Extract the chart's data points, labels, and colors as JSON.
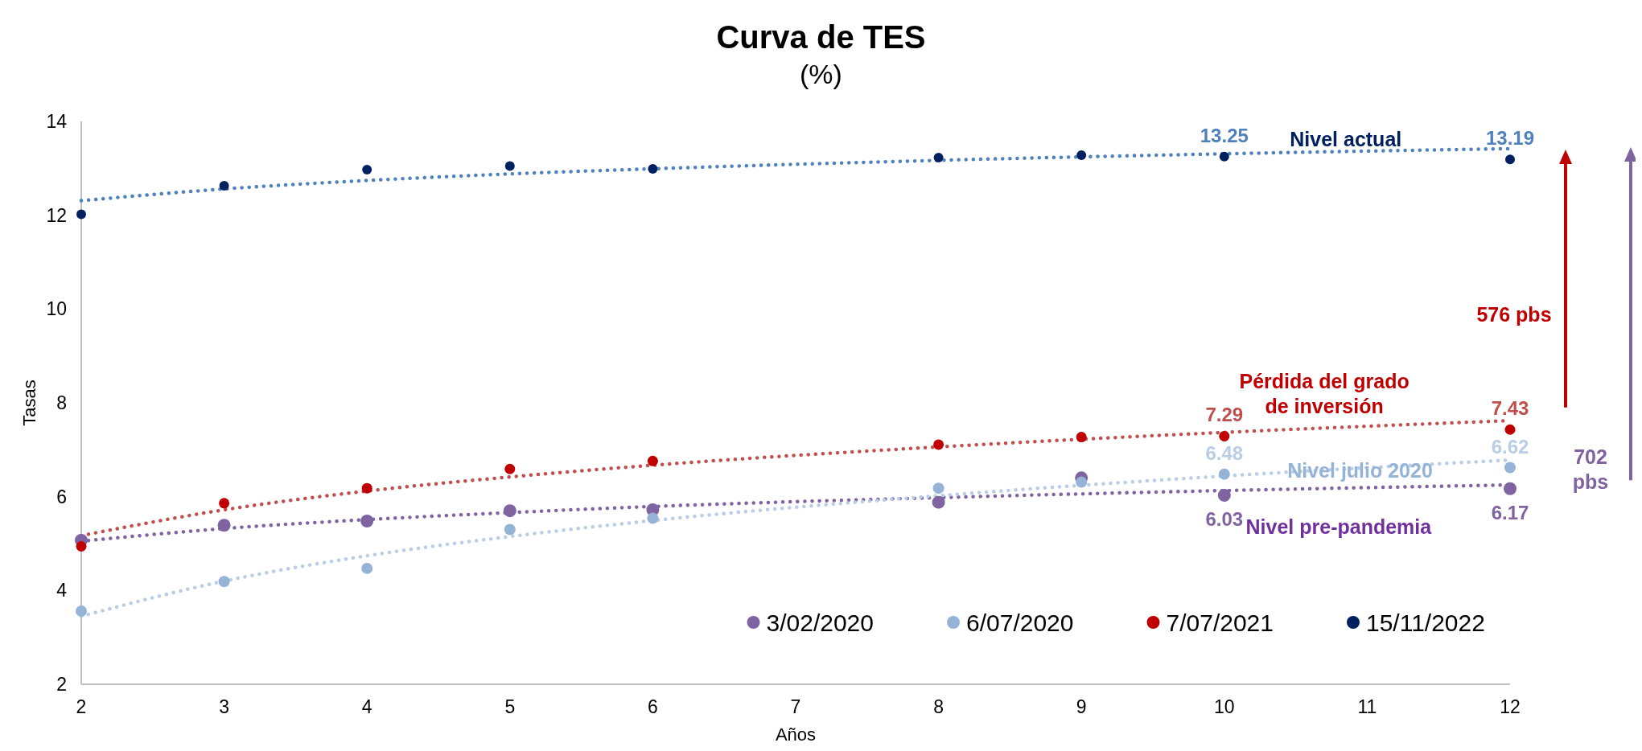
{
  "chart_data": {
    "type": "scatter",
    "title": "Curva de TES",
    "subtitle": "(%)",
    "xlabel": "Años",
    "ylabel": "Tasas",
    "x": [
      2,
      3,
      4,
      5,
      6,
      8,
      9,
      10,
      12
    ],
    "xlim": [
      2,
      12
    ],
    "xticks": [
      2,
      3,
      4,
      5,
      6,
      7,
      8,
      9,
      10,
      11,
      12
    ],
    "ylim": [
      2,
      14
    ],
    "yticks": [
      2,
      4,
      6,
      8,
      10,
      12,
      14
    ],
    "grid": false,
    "legend": "bottom right",
    "marker": "circle",
    "series": [
      {
        "name": "3/02/2020",
        "color": "#8064a2",
        "values": [
          5.07,
          5.39,
          5.48,
          5.7,
          5.72,
          5.88,
          6.4,
          6.03,
          6.17
        ],
        "value_labels": [
          null,
          null,
          null,
          null,
          null,
          null,
          null,
          "6.03",
          "6.17"
        ]
      },
      {
        "name": "6/07/2020",
        "color": "#95b3d7",
        "values": [
          3.56,
          4.19,
          4.47,
          5.3,
          5.54,
          6.18,
          6.31,
          6.48,
          6.62
        ],
        "value_labels": [
          null,
          null,
          null,
          null,
          null,
          null,
          null,
          "6.48",
          "6.62"
        ]
      },
      {
        "name": "7/07/2021",
        "color": "#c00000",
        "values": [
          4.94,
          5.86,
          6.18,
          6.59,
          6.76,
          7.11,
          7.27,
          7.29,
          7.43
        ],
        "value_labels": [
          null,
          null,
          null,
          null,
          null,
          null,
          null,
          "7.29",
          "7.43"
        ]
      },
      {
        "name": "15/11/2022",
        "color": "#002060",
        "values": [
          12.02,
          12.63,
          12.97,
          13.05,
          12.99,
          13.23,
          13.28,
          13.25,
          13.19
        ],
        "value_labels": [
          null,
          null,
          null,
          null,
          null,
          null,
          null,
          "13.25",
          "13.19"
        ]
      },
      {
        "type": "line",
        "marker": "none",
        "line_style": "dotted",
        "color": "#8064a2",
        "x": [
          2,
          3,
          4,
          5,
          6,
          8,
          10,
          12
        ],
        "values": [
          5.05,
          5.32,
          5.51,
          5.66,
          5.79,
          5.98,
          6.13,
          6.25
        ]
      },
      {
        "type": "line",
        "marker": "none",
        "line_style": "dotted",
        "color": "#b9cde5",
        "x": [
          2,
          3,
          4,
          5,
          6,
          8,
          10,
          12
        ],
        "values": [
          3.45,
          4.2,
          4.74,
          5.15,
          5.49,
          6.02,
          6.44,
          6.78
        ]
      },
      {
        "type": "line",
        "marker": "none",
        "line_style": "dotted",
        "color": "#c0504d",
        "x": [
          2,
          3,
          4,
          5,
          6,
          8,
          10,
          12
        ],
        "values": [
          5.17,
          5.72,
          6.12,
          6.42,
          6.67,
          7.06,
          7.37,
          7.62
        ]
      },
      {
        "type": "line",
        "marker": "none",
        "line_style": "dotted",
        "color": "#4f81bd",
        "x": [
          2,
          3,
          4,
          5,
          6,
          8,
          10,
          12
        ],
        "values": [
          12.31,
          12.56,
          12.74,
          12.88,
          12.99,
          13.17,
          13.31,
          13.42
        ]
      }
    ],
    "annotations": [
      "Nivel actual",
      "Pérdida del grado\nde inversión",
      "Nivel julio 2020",
      "Nivel pre-pandemia",
      "576 pbs",
      "702\npbs"
    ]
  }
}
